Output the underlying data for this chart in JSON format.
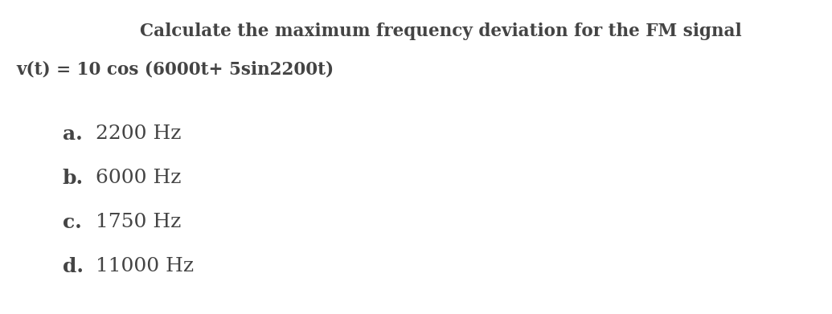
{
  "background_color": "#ffffff",
  "title_line1": "Calculate the maximum frequency deviation for the FM signal",
  "title_line2": "v(t) = 10 cos (6000t+ 5sin2200t)",
  "options": [
    {
      "label": "a.",
      "text": "2200 Hz"
    },
    {
      "label": "b.",
      "text": "6000 Hz"
    },
    {
      "label": "c.",
      "text": "1750 Hz"
    },
    {
      "label": "d.",
      "text": "11000 Hz"
    }
  ],
  "title_fontsize": 15.5,
  "option_fontsize": 18,
  "label_fontsize": 18,
  "text_color": "#444444",
  "fig_width": 10.35,
  "fig_height": 3.91,
  "dpi": 100
}
